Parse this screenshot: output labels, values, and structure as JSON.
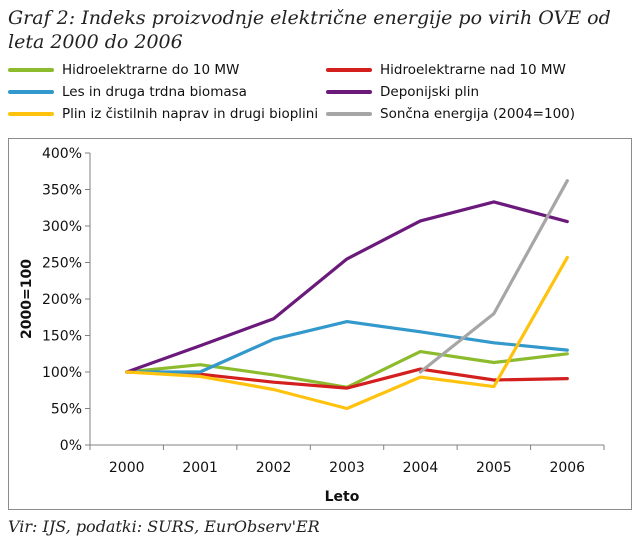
{
  "title": "Graf 2: Indeks proizvodnje električne energije po virih OVE od leta 2000 do 2006",
  "source": "Vir: IJS, podatki: SURS, EurObserv'ER",
  "chart_data": {
    "type": "line",
    "xlabel": "Leto",
    "ylabel": "2000=100",
    "categories": [
      "2000",
      "2001",
      "2002",
      "2003",
      "2004",
      "2005",
      "2006"
    ],
    "ylim": [
      0,
      400
    ],
    "yticks": [
      "0%",
      "50%",
      "100%",
      "150%",
      "200%",
      "250%",
      "300%",
      "350%",
      "400%"
    ],
    "grid": false,
    "legend_position": "top",
    "series": [
      {
        "name": "Hidroelektrarne do 10 MW",
        "color": "#8dbb2e",
        "values": [
          100,
          110,
          96,
          79,
          128,
          113,
          125
        ]
      },
      {
        "name": "Hidroelektrarne nad 10 MW",
        "color": "#d41f1f",
        "values": [
          100,
          97,
          86,
          78,
          104,
          89,
          91
        ]
      },
      {
        "name": "Les in druga trdna biomasa",
        "color": "#3399cc",
        "values": [
          100,
          100,
          145,
          169,
          155,
          140,
          130
        ]
      },
      {
        "name": "Deponijski plin",
        "color": "#6b1a7c",
        "values": [
          100,
          136,
          173,
          255,
          307,
          333,
          306
        ]
      },
      {
        "name": "Plin iz čistilnih naprav in drugi bioplini",
        "color": "#ffc20e",
        "values": [
          100,
          94,
          76,
          50,
          93,
          80,
          257
        ]
      },
      {
        "name": "Sončna energija (2004=100)",
        "color": "#a6a6a6",
        "values": [
          null,
          null,
          null,
          null,
          100,
          180,
          362
        ]
      }
    ]
  }
}
